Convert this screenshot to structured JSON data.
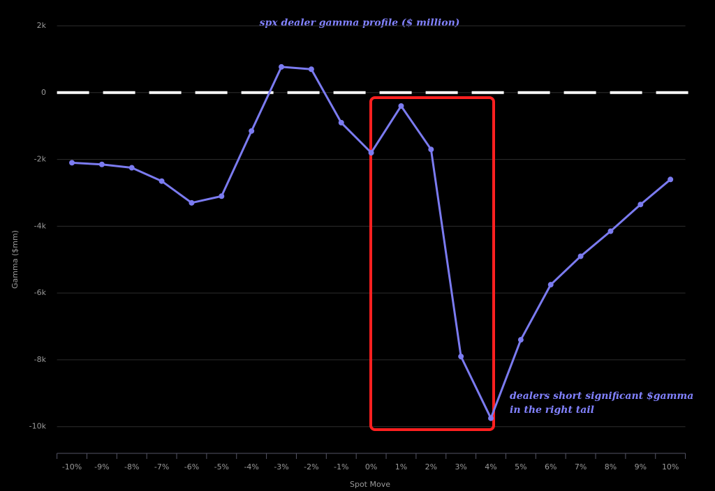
{
  "chart_data": {
    "type": "line",
    "title": "spx dealer gamma profile ($ million)",
    "x_label": "Spot Move",
    "y_label": "Gamma ($mm)",
    "annotation": [
      "dealers short significant $gamma",
      "in the right tail"
    ],
    "categories": [
      "-10%",
      "-9%",
      "-8%",
      "-7%",
      "-6%",
      "-5%",
      "-4%",
      "-3%",
      "-2%",
      "-1%",
      "0%",
      "1%",
      "2%",
      "3%",
      "4%",
      "5%",
      "6%",
      "7%",
      "8%",
      "9%",
      "10%"
    ],
    "series": [
      {
        "name": "Gamma",
        "color": "#7b7bf0",
        "values": [
          -2100,
          -2150,
          -2250,
          -2650,
          -3300,
          -3100,
          -1150,
          770,
          700,
          -900,
          -1800,
          -400,
          -1700,
          -7900,
          -9750,
          -7400,
          -5750,
          -4900,
          -4150,
          -3350,
          -2600
        ]
      }
    ],
    "ylim": [
      -10800,
      2000
    ],
    "yticks": [
      {
        "value": 2000,
        "label": "2k"
      },
      0,
      {
        "value": -2000,
        "label": "-2k"
      },
      {
        "value": -4000,
        "label": "-4k"
      },
      {
        "value": -6000,
        "label": "-6k"
      },
      {
        "value": -8000,
        "label": "-8k"
      },
      {
        "value": -10000,
        "label": "-10k"
      }
    ],
    "reference_line": 0,
    "grid": true
  }
}
